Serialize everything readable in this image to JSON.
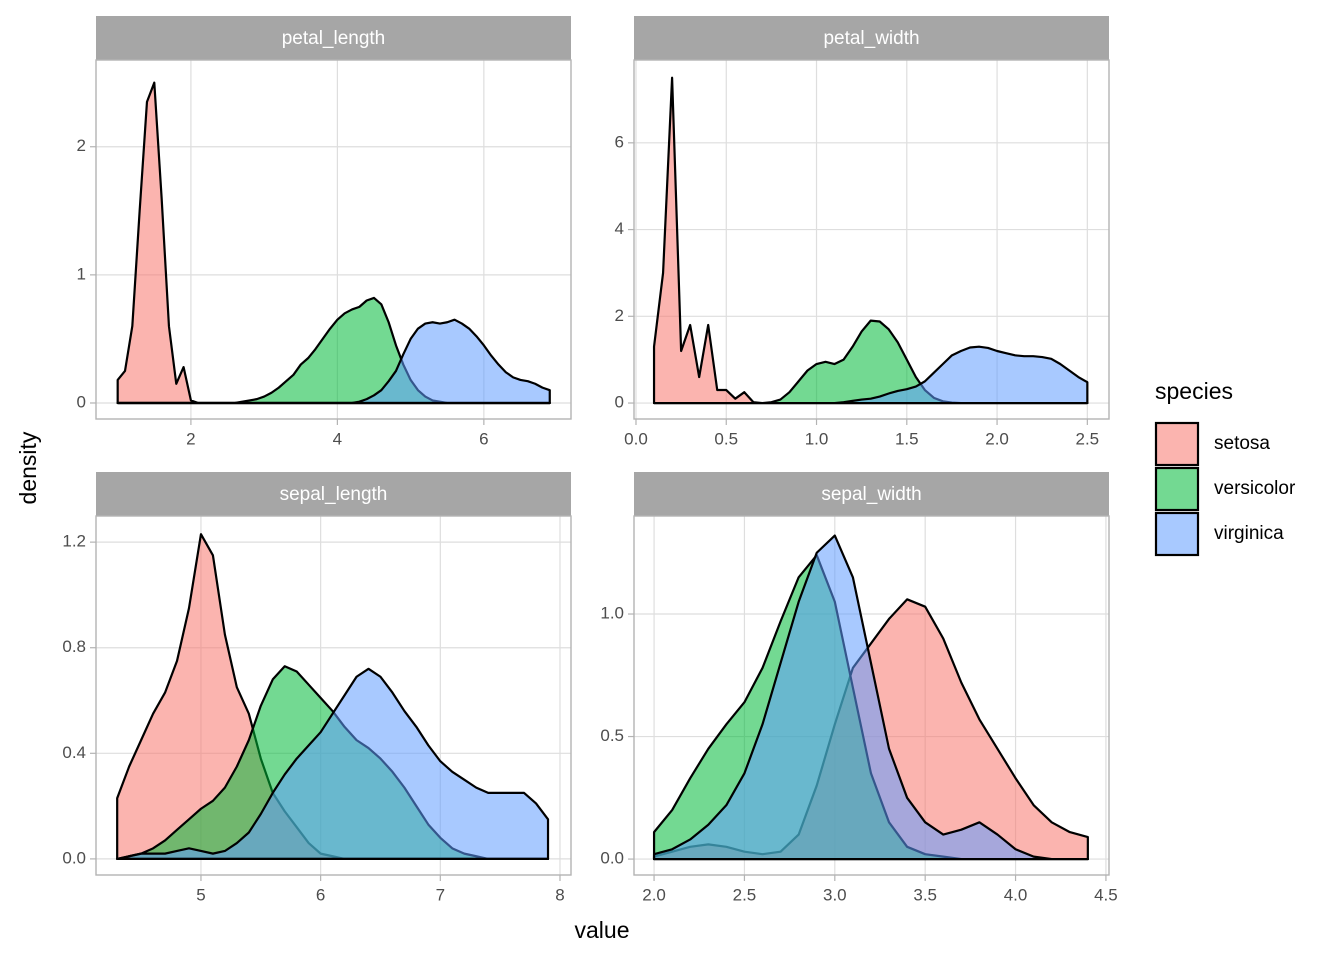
{
  "x_label": "value",
  "y_label": "density",
  "legend_title": "species",
  "chart_data": [
    {
      "type": "area",
      "title": "petal_length",
      "x": [
        1.0,
        1.1,
        1.2,
        1.3,
        1.4,
        1.5,
        1.6,
        1.7,
        1.8,
        1.9,
        2.0,
        2.1,
        2.2,
        2.3,
        2.4,
        2.5,
        2.6,
        2.7,
        2.8,
        2.9,
        3.0,
        3.1,
        3.2,
        3.3,
        3.4,
        3.5,
        3.6,
        3.7,
        3.8,
        3.9,
        4.0,
        4.1,
        4.2,
        4.3,
        4.4,
        4.5,
        4.6,
        4.7,
        4.8,
        4.9,
        5.0,
        5.1,
        5.2,
        5.3,
        5.4,
        5.5,
        5.6,
        5.7,
        5.8,
        5.9,
        6.0,
        6.1,
        6.2,
        6.3,
        6.4,
        6.5,
        6.6,
        6.7,
        6.8,
        6.9
      ],
      "series": [
        {
          "name": "setosa",
          "color": "#F8766D",
          "values": [
            0.18,
            0.25,
            0.6,
            1.5,
            2.35,
            2.5,
            1.6,
            0.6,
            0.15,
            0.28,
            0.02,
            0,
            0,
            0,
            0,
            0,
            0,
            0,
            0,
            0,
            0,
            0,
            0,
            0,
            0,
            0,
            0,
            0,
            0,
            0,
            0,
            0,
            0,
            0,
            0,
            0,
            0,
            0,
            0,
            0,
            0,
            0,
            0,
            0,
            0,
            0,
            0,
            0,
            0,
            0,
            0,
            0,
            0,
            0,
            0,
            0,
            0,
            0,
            0,
            0
          ]
        },
        {
          "name": "versicolor",
          "color": "#00BA38",
          "values": [
            0,
            0,
            0,
            0,
            0,
            0,
            0,
            0,
            0,
            0,
            0,
            0,
            0,
            0,
            0,
            0,
            0,
            0.01,
            0.02,
            0.03,
            0.05,
            0.08,
            0.12,
            0.17,
            0.22,
            0.3,
            0.35,
            0.42,
            0.5,
            0.58,
            0.65,
            0.7,
            0.73,
            0.75,
            0.8,
            0.82,
            0.77,
            0.63,
            0.45,
            0.3,
            0.18,
            0.1,
            0.05,
            0.02,
            0.01,
            0,
            0,
            0,
            0,
            0,
            0,
            0,
            0,
            0,
            0,
            0,
            0,
            0,
            0,
            0
          ]
        },
        {
          "name": "virginica",
          "color": "#619CFF",
          "values": [
            0,
            0,
            0,
            0,
            0,
            0,
            0,
            0,
            0,
            0,
            0,
            0,
            0,
            0,
            0,
            0,
            0,
            0,
            0,
            0,
            0,
            0,
            0,
            0,
            0,
            0,
            0,
            0,
            0,
            0,
            0,
            0,
            0,
            0.01,
            0.03,
            0.06,
            0.1,
            0.17,
            0.25,
            0.38,
            0.5,
            0.58,
            0.62,
            0.63,
            0.62,
            0.63,
            0.65,
            0.62,
            0.58,
            0.52,
            0.45,
            0.37,
            0.3,
            0.24,
            0.2,
            0.18,
            0.17,
            0.15,
            0.12,
            0.1
          ]
        }
      ],
      "xlim": [
        0.704,
        7.19
      ],
      "ylim": [
        -0.125,
        2.677
      ],
      "xticks": [
        2,
        4,
        6
      ],
      "yticks": [
        0,
        1,
        2
      ],
      "grid": true
    },
    {
      "type": "area",
      "title": "petal_width",
      "x": [
        0.1,
        0.15,
        0.2,
        0.25,
        0.3,
        0.35,
        0.4,
        0.45,
        0.5,
        0.55,
        0.6,
        0.65,
        0.7,
        0.75,
        0.8,
        0.85,
        0.9,
        0.95,
        1.0,
        1.05,
        1.1,
        1.15,
        1.2,
        1.25,
        1.3,
        1.35,
        1.4,
        1.45,
        1.5,
        1.55,
        1.6,
        1.65,
        1.7,
        1.75,
        1.8,
        1.85,
        1.9,
        1.95,
        2.0,
        2.05,
        2.1,
        2.15,
        2.2,
        2.25,
        2.3,
        2.35,
        2.4,
        2.45,
        2.5
      ],
      "series": [
        {
          "color": "#F8766D",
          "values": [
            1.3,
            3.0,
            7.5,
            1.2,
            1.8,
            0.6,
            1.8,
            0.3,
            0.3,
            0.1,
            0.25,
            0.02,
            0,
            0,
            0,
            0,
            0,
            0,
            0,
            0,
            0,
            0,
            0,
            0,
            0,
            0,
            0,
            0,
            0,
            0,
            0,
            0,
            0,
            0,
            0,
            0,
            0,
            0,
            0,
            0,
            0,
            0,
            0,
            0,
            0,
            0,
            0,
            0,
            0
          ]
        },
        {
          "color": "#00BA38",
          "values": [
            0,
            0,
            0,
            0,
            0,
            0,
            0,
            0,
            0,
            0,
            0,
            0,
            0,
            0.02,
            0.08,
            0.25,
            0.5,
            0.75,
            0.9,
            0.95,
            0.9,
            1.0,
            1.3,
            1.65,
            1.9,
            1.88,
            1.7,
            1.4,
            1.0,
            0.6,
            0.3,
            0.12,
            0.04,
            0.01,
            0,
            0,
            0,
            0,
            0,
            0,
            0,
            0,
            0,
            0,
            0,
            0,
            0,
            0,
            0
          ]
        },
        {
          "color": "#619CFF",
          "values": [
            0,
            0,
            0,
            0,
            0,
            0,
            0,
            0,
            0,
            0,
            0,
            0,
            0,
            0,
            0,
            0,
            0,
            0,
            0,
            0,
            0,
            0.02,
            0.05,
            0.08,
            0.1,
            0.15,
            0.22,
            0.28,
            0.32,
            0.38,
            0.5,
            0.7,
            0.9,
            1.1,
            1.2,
            1.28,
            1.3,
            1.27,
            1.2,
            1.15,
            1.1,
            1.08,
            1.08,
            1.06,
            1.02,
            0.9,
            0.75,
            0.6,
            0.48
          ]
        }
      ],
      "xlim": [
        -0.011,
        2.62
      ],
      "ylim": [
        -0.368,
        7.91
      ],
      "xticks": [
        {
          "value": 0,
          "label": "0.0"
        },
        0.5,
        {
          "value": 1,
          "label": "1.0"
        },
        1.5,
        {
          "value": 2,
          "label": "2.0"
        },
        2.5
      ],
      "yticks": [
        0,
        2,
        4,
        6
      ],
      "grid": true
    },
    {
      "type": "area",
      "title": "sepal_length",
      "x": [
        4.3,
        4.4,
        4.5,
        4.6,
        4.7,
        4.8,
        4.9,
        5.0,
        5.1,
        5.2,
        5.3,
        5.4,
        5.5,
        5.6,
        5.7,
        5.8,
        5.9,
        6.0,
        6.1,
        6.2,
        6.3,
        6.4,
        6.5,
        6.6,
        6.7,
        6.8,
        6.9,
        7.0,
        7.1,
        7.2,
        7.3,
        7.4,
        7.5,
        7.6,
        7.7,
        7.8,
        7.9
      ],
      "series": [
        {
          "color": "#F8766D",
          "values": [
            0.23,
            0.35,
            0.45,
            0.55,
            0.63,
            0.75,
            0.95,
            1.23,
            1.15,
            0.85,
            0.65,
            0.55,
            0.38,
            0.25,
            0.18,
            0.12,
            0.06,
            0.02,
            0.01,
            0,
            0,
            0,
            0,
            0,
            0,
            0,
            0,
            0,
            0,
            0,
            0,
            0,
            0,
            0,
            0,
            0,
            0
          ]
        },
        {
          "color": "#00BA38",
          "values": [
            0,
            0.01,
            0.02,
            0.04,
            0.07,
            0.11,
            0.15,
            0.19,
            0.22,
            0.27,
            0.35,
            0.45,
            0.58,
            0.68,
            0.73,
            0.71,
            0.66,
            0.61,
            0.56,
            0.5,
            0.45,
            0.42,
            0.38,
            0.33,
            0.27,
            0.2,
            0.13,
            0.08,
            0.04,
            0.02,
            0.01,
            0,
            0,
            0,
            0,
            0,
            0
          ]
        },
        {
          "color": "#619CFF",
          "values": [
            0,
            0.01,
            0.02,
            0.02,
            0.02,
            0.03,
            0.04,
            0.03,
            0.02,
            0.03,
            0.06,
            0.1,
            0.17,
            0.25,
            0.32,
            0.38,
            0.43,
            0.48,
            0.55,
            0.62,
            0.69,
            0.72,
            0.69,
            0.63,
            0.56,
            0.5,
            0.43,
            0.37,
            0.33,
            0.3,
            0.27,
            0.25,
            0.25,
            0.25,
            0.25,
            0.21,
            0.15
          ]
        }
      ],
      "xlim": [
        4.123,
        8.092
      ],
      "ylim": [
        -0.061,
        1.299
      ],
      "xticks": [
        5,
        6,
        7,
        8
      ],
      "yticks": [
        {
          "value": 0,
          "label": "0.0"
        },
        0.4,
        0.8,
        1.2
      ],
      "grid": true
    },
    {
      "type": "area",
      "title": "sepal_width",
      "x": [
        2.0,
        2.1,
        2.2,
        2.3,
        2.4,
        2.5,
        2.6,
        2.7,
        2.8,
        2.9,
        3.0,
        3.1,
        3.2,
        3.3,
        3.4,
        3.5,
        3.6,
        3.7,
        3.8,
        3.9,
        4.0,
        4.1,
        4.2,
        4.3,
        4.4
      ],
      "series": [
        {
          "color": "#F8766D",
          "values": [
            0.01,
            0.03,
            0.05,
            0.06,
            0.05,
            0.03,
            0.02,
            0.03,
            0.1,
            0.3,
            0.55,
            0.78,
            0.88,
            0.98,
            1.06,
            1.03,
            0.9,
            0.72,
            0.57,
            0.45,
            0.33,
            0.22,
            0.15,
            0.11,
            0.09
          ]
        },
        {
          "color": "#00BA38",
          "values": [
            0.11,
            0.2,
            0.33,
            0.45,
            0.55,
            0.64,
            0.78,
            0.97,
            1.15,
            1.24,
            1.05,
            0.7,
            0.35,
            0.15,
            0.05,
            0.02,
            0.01,
            0,
            0,
            0,
            0,
            0,
            0,
            0,
            0
          ]
        },
        {
          "color": "#619CFF",
          "values": [
            0.02,
            0.04,
            0.08,
            0.14,
            0.22,
            0.35,
            0.55,
            0.8,
            1.05,
            1.25,
            1.32,
            1.15,
            0.8,
            0.45,
            0.25,
            0.15,
            0.1,
            0.12,
            0.15,
            0.1,
            0.04,
            0.01,
            0,
            0,
            0
          ]
        }
      ],
      "xlim": [
        1.889,
        4.517
      ],
      "ylim": [
        -0.065,
        1.4
      ],
      "xticks": [
        {
          "value": 2,
          "label": "2.0"
        },
        2.5,
        {
          "value": 3,
          "label": "3.0"
        },
        3.5,
        {
          "value": 4,
          "label": "4.0"
        },
        4.5
      ],
      "yticks": [
        {
          "value": 0,
          "label": "0.0"
        },
        0.5,
        {
          "value": 1,
          "label": "1.0"
        }
      ],
      "grid": true
    }
  ]
}
